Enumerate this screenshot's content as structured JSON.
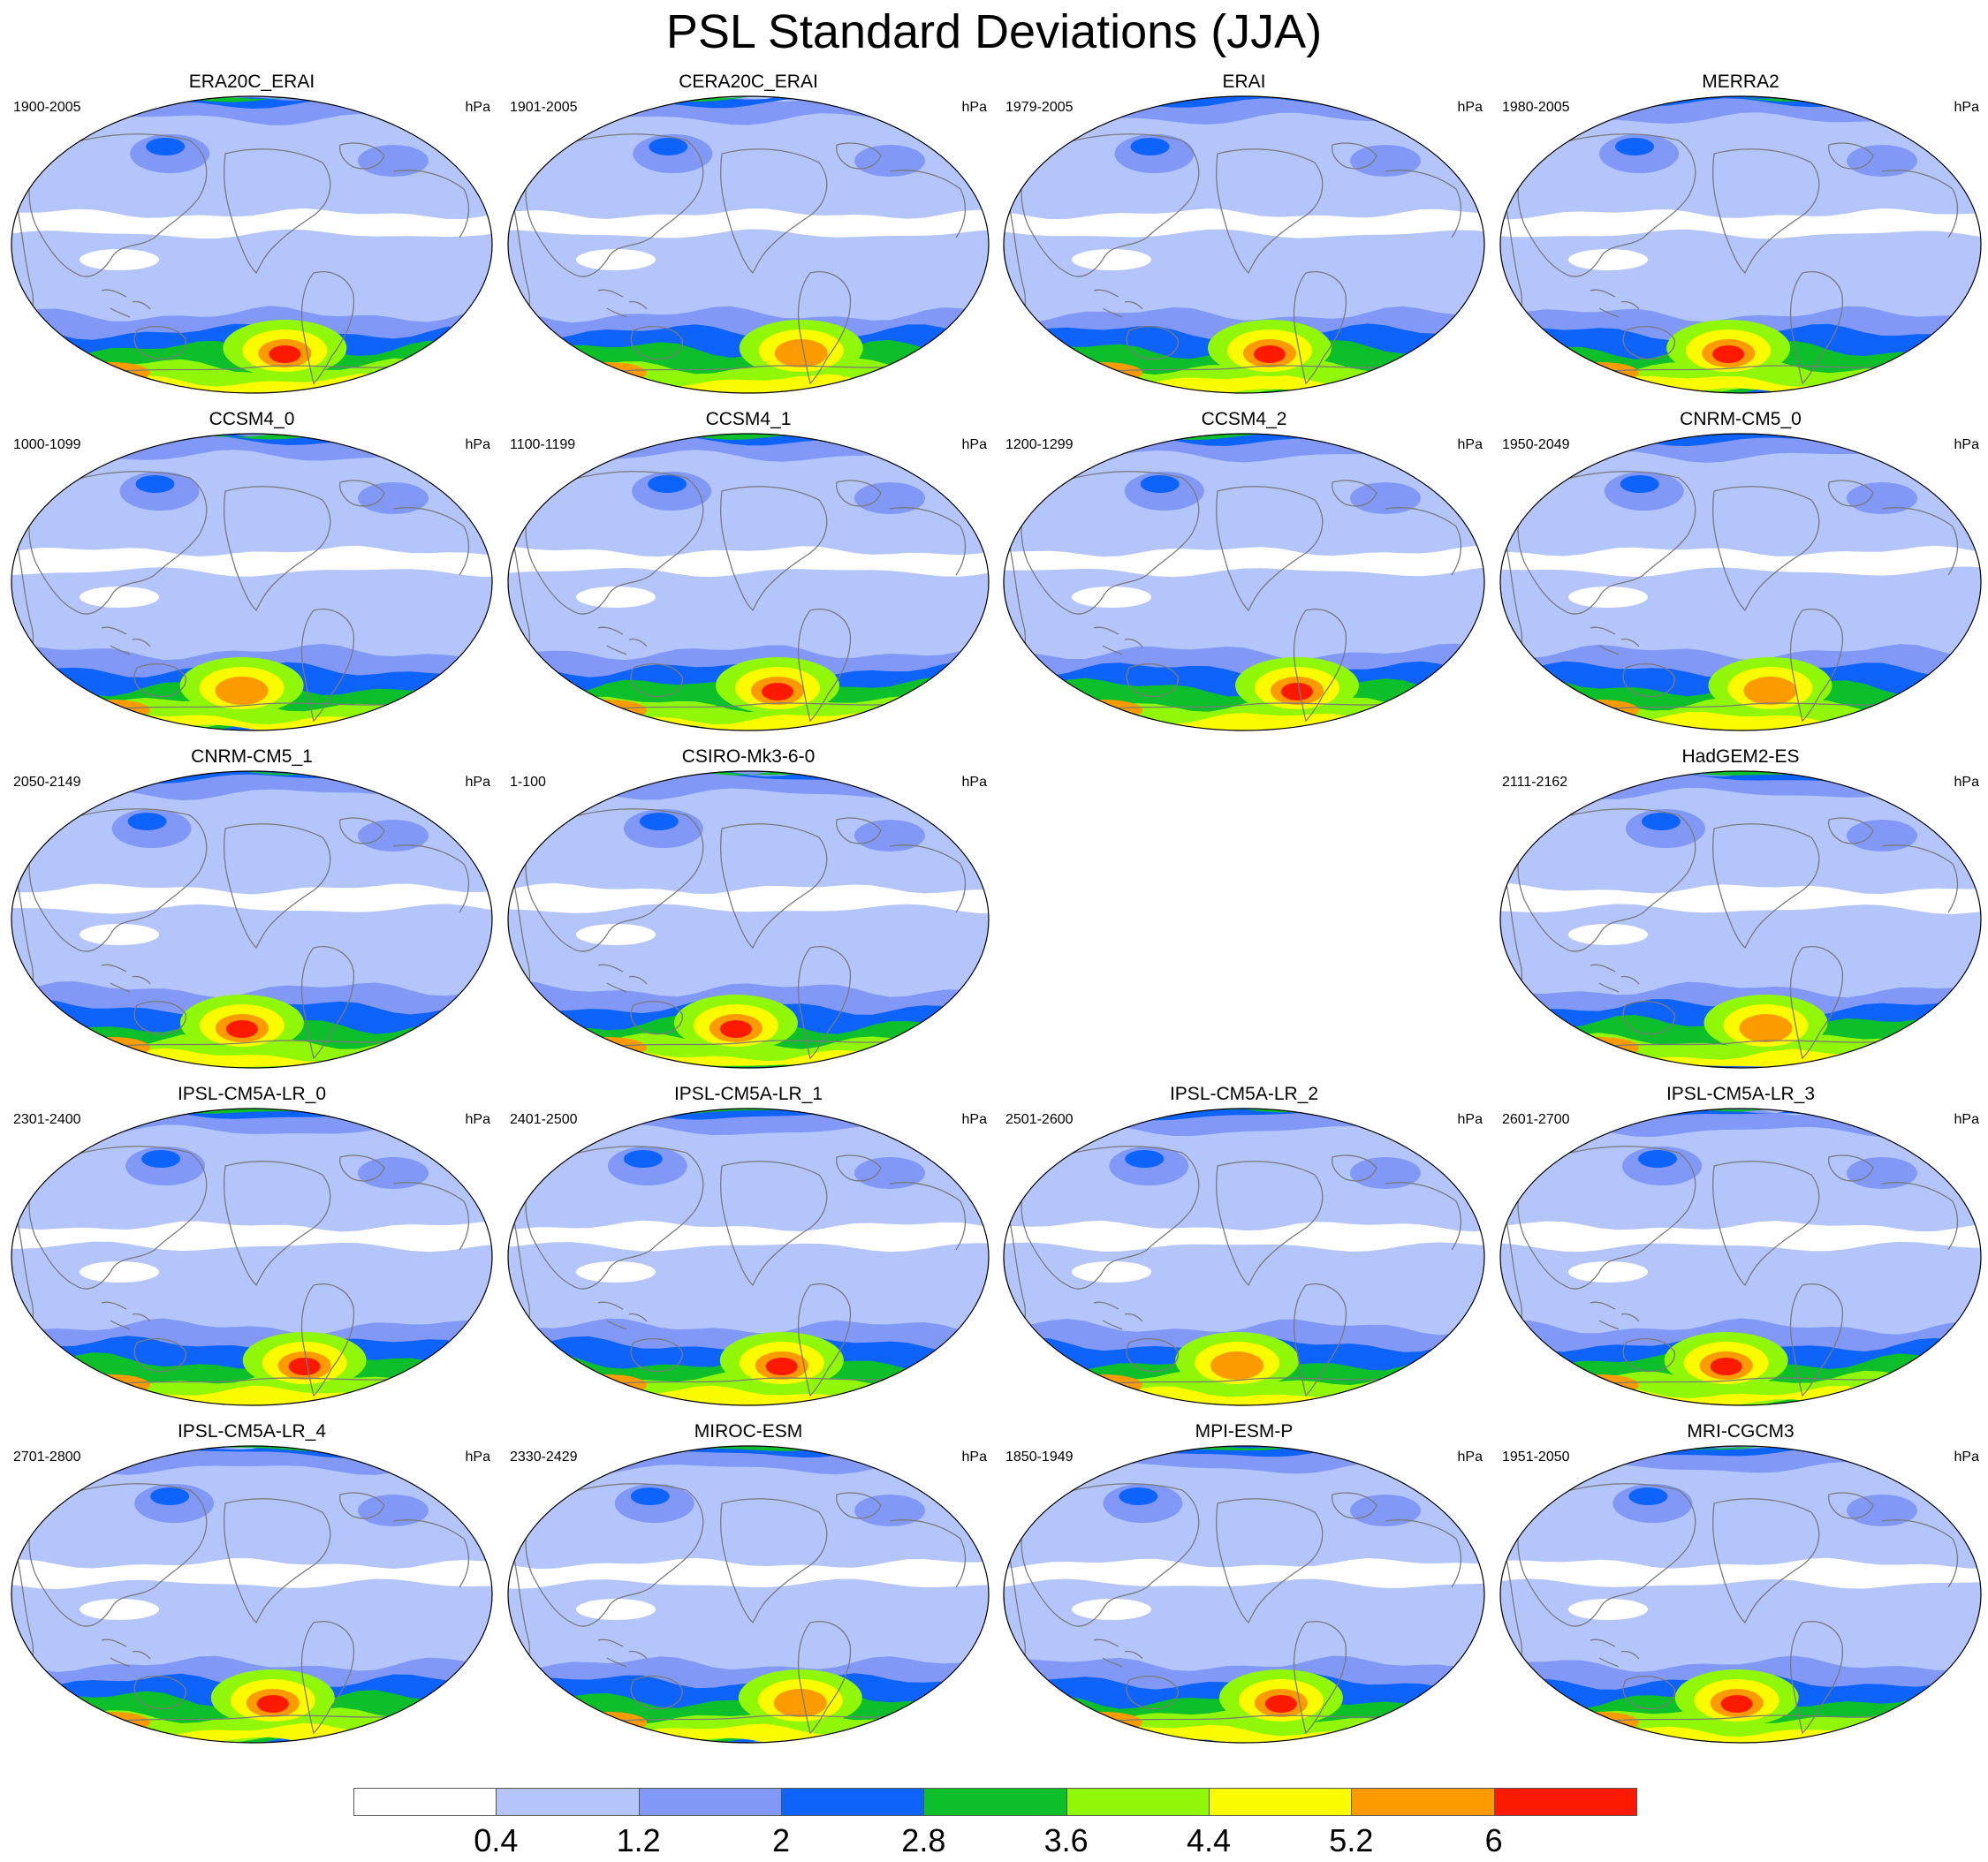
{
  "title": "PSL Standard Deviations (JJA)",
  "colorbar": {
    "colors": [
      "#ffffff",
      "#b3c5fa",
      "#8198f7",
      "#0d63fa",
      "#0dbf2a",
      "#8ff707",
      "#fbfb00",
      "#fb9b00",
      "#fb1a00"
    ],
    "labels": [
      "0.4",
      "1.2",
      "2",
      "2.8",
      "3.6",
      "4.4",
      "5.2",
      "6"
    ]
  },
  "panels": [
    {
      "name": "ERA20C_ERAI",
      "period": "1900-2005",
      "units": "hPa"
    },
    {
      "name": "CERA20C_ERAI",
      "period": "1901-2005",
      "units": "hPa"
    },
    {
      "name": "ERAI",
      "period": "1979-2005",
      "units": "hPa"
    },
    {
      "name": "MERRA2",
      "period": "1980-2005",
      "units": "hPa"
    },
    {
      "name": "CCSM4_0",
      "period": "1000-1099",
      "units": "hPa"
    },
    {
      "name": "CCSM4_1",
      "period": "1100-1199",
      "units": "hPa"
    },
    {
      "name": "CCSM4_2",
      "period": "1200-1299",
      "units": "hPa"
    },
    {
      "name": "CNRM-CM5_0",
      "period": "1950-2049",
      "units": "hPa"
    },
    {
      "name": "CNRM-CM5_1",
      "period": "2050-2149",
      "units": "hPa"
    },
    {
      "name": "CSIRO-Mk3-6-0",
      "period": "1-100",
      "units": "hPa"
    },
    {
      "name": "HadGEM2-ES",
      "period": "2111-2162",
      "units": "hPa"
    },
    {
      "name": "IPSL-CM5A-LR_0",
      "period": "2301-2400",
      "units": "hPa"
    },
    {
      "name": "IPSL-CM5A-LR_1",
      "period": "2401-2500",
      "units": "hPa"
    },
    {
      "name": "IPSL-CM5A-LR_2",
      "period": "2501-2600",
      "units": "hPa"
    },
    {
      "name": "IPSL-CM5A-LR_3",
      "period": "2601-2700",
      "units": "hPa"
    },
    {
      "name": "IPSL-CM5A-LR_4",
      "period": "2701-2800",
      "units": "hPa"
    },
    {
      "name": "MIROC-ESM",
      "period": "2330-2429",
      "units": "hPa"
    },
    {
      "name": "MPI-ESM-P",
      "period": "1850-1949",
      "units": "hPa"
    },
    {
      "name": "MRI-CGCM3",
      "period": "1951-2050",
      "units": "hPa"
    }
  ]
}
